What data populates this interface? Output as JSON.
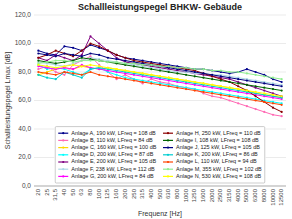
{
  "chart_data": {
    "type": "line",
    "title": "Schallleistungspegel BHKW- Gebäude",
    "x_label": "Frequenz [Hz]",
    "y_label": "Schallleistungspegel Lmax [dB]",
    "categories": [
      "20",
      "25",
      "31,5",
      "40",
      "50",
      "63",
      "80",
      "100",
      "125",
      "160",
      "200",
      "250",
      "315",
      "400",
      "500",
      "630",
      "800",
      "1000",
      "1250",
      "1600",
      "2000",
      "2500",
      "3150",
      "4000",
      "5000",
      "6300",
      "8000",
      "10000",
      "12500"
    ],
    "ylim": [
      0,
      120
    ],
    "yticks": [
      {
        "value": 0,
        "label": "0,0"
      },
      {
        "value": 20,
        "label": "20,0"
      },
      {
        "value": 40,
        "label": "40,0"
      },
      {
        "value": 60,
        "label": "60,0"
      },
      {
        "value": 80,
        "label": "80,0"
      },
      {
        "value": 100,
        "label": "100,0"
      },
      {
        "value": 120,
        "label": "120,0"
      }
    ],
    "grid": true,
    "legend": "bottom",
    "marker": "circle",
    "series": [
      {
        "name": "Anlage A, 190 kW, LFreq = 108 dB",
        "color": "#00008B",
        "values": [
          95,
          93,
          92,
          98,
          97,
          95,
          99,
          97,
          95,
          92,
          90,
          89,
          88,
          87,
          86,
          85,
          84,
          83,
          82,
          82,
          81,
          80,
          79,
          80,
          82,
          80,
          78,
          75,
          73
        ]
      },
      {
        "name": "Anlage B, 110 kW, LFreq = 84 dB",
        "color": "#FF69B4",
        "values": [
          82,
          84,
          80,
          78,
          85,
          88,
          91,
          85,
          80,
          75,
          78,
          75,
          72,
          75,
          73,
          72,
          70,
          69,
          68,
          65,
          63,
          62,
          60,
          58,
          56,
          54,
          52,
          50,
          49
        ]
      },
      {
        "name": "Anlage C, 160 kW, LFreq = 100 dB",
        "color": "#FFD700",
        "values": [
          78,
          80,
          82,
          83,
          82,
          84,
          83,
          82,
          83,
          82,
          81,
          80,
          79,
          78,
          77,
          76,
          75,
          74,
          73,
          72,
          71,
          70,
          69,
          68,
          67,
          65,
          64,
          63,
          62
        ]
      },
      {
        "name": "Anlage D, 200 kW, LFreq = 87 dB",
        "color": "#00FFFF",
        "values": [
          85,
          82,
          83,
          82,
          80,
          78,
          82,
          83,
          80,
          78,
          76,
          75,
          74,
          73,
          72,
          71,
          70,
          69,
          68,
          67,
          66,
          65,
          64,
          63,
          62,
          61,
          60,
          59,
          58
        ]
      },
      {
        "name": "Anlage E, 200 kW, LFreq = 105 dB",
        "color": "#800080",
        "values": [
          90,
          88,
          92,
          90,
          88,
          92,
          105,
          100,
          95,
          90,
          87,
          86,
          85,
          84,
          83,
          82,
          81,
          80,
          79,
          78,
          77,
          76,
          75,
          73,
          71,
          69,
          67,
          65,
          63
        ]
      },
      {
        "name": "Anlage F, 238 kW, LFreq = 112 dB",
        "color": "#ADD8E6",
        "values": [
          87,
          86,
          85,
          84,
          86,
          88,
          90,
          89,
          88,
          87,
          86,
          85,
          84,
          83,
          82,
          81,
          80,
          80,
          79,
          79,
          78,
          78,
          77,
          76,
          75,
          74,
          73,
          72,
          71
        ]
      },
      {
        "name": "Anlage G, 200 kW, LFreq = 84 dB",
        "color": "#FF00FF",
        "values": [
          84,
          83,
          82,
          83,
          82,
          85,
          83,
          82,
          81,
          80,
          79,
          78,
          77,
          76,
          75,
          74,
          73,
          72,
          71,
          70,
          69,
          68,
          67,
          66,
          65,
          64,
          63,
          62,
          61
        ]
      },
      {
        "name": "Anlage H, 250 kW, LFreq = 110 dB",
        "color": "#8B0000",
        "values": [
          90,
          92,
          95,
          93,
          91,
          95,
          100,
          98,
          95,
          92,
          90,
          88,
          87,
          86,
          85,
          84,
          83,
          82,
          81,
          79,
          77,
          75,
          73,
          70,
          67,
          63,
          59,
          55,
          52
        ]
      },
      {
        "name": "Anlage I, 108 kW, LFreq = 108 dB",
        "color": "#006400",
        "values": [
          88,
          87,
          86,
          87,
          88,
          90,
          89,
          88,
          87,
          86,
          85,
          84,
          83,
          82,
          81,
          80,
          79,
          78,
          77,
          76,
          75,
          74,
          73,
          72,
          71,
          70,
          69,
          68,
          67
        ]
      },
      {
        "name": "Anlage J, 125 kW, LFreq = 105 dB",
        "color": "#000080",
        "values": [
          93,
          92,
          91,
          93,
          92,
          91,
          93,
          92,
          90,
          89,
          88,
          87,
          86,
          85,
          84,
          83,
          82,
          81,
          80,
          79,
          78,
          77,
          76,
          75,
          74,
          73,
          72,
          71,
          70
        ]
      },
      {
        "name": "Anlage K, 200 kW, LFreq = 86 dB",
        "color": "#00CED1",
        "values": [
          78,
          76,
          75,
          80,
          78,
          76,
          82,
          83,
          82,
          81,
          80,
          79,
          78,
          77,
          76,
          75,
          74,
          73,
          72,
          71,
          70,
          69,
          68,
          67,
          66,
          65,
          64,
          63,
          62
        ]
      },
      {
        "name": "Anlage L, 110 kW, LFreq = 94 dB",
        "color": "#FF4500",
        "values": [
          80,
          79,
          78,
          80,
          79,
          78,
          80,
          78,
          77,
          76,
          75,
          74,
          73,
          72,
          71,
          70,
          69,
          68,
          67,
          66,
          65,
          64,
          63,
          62,
          61,
          60,
          59,
          58,
          57
        ]
      },
      {
        "name": "Anlage M, 355 kW, LFreq = 102 dB",
        "color": "#90EE90",
        "values": [
          86,
          87,
          88,
          88,
          87,
          88,
          88,
          88,
          87,
          87,
          86,
          86,
          85,
          85,
          84,
          84,
          83,
          83,
          82,
          82,
          81,
          81,
          80,
          80,
          79,
          78,
          77,
          76,
          75
        ]
      },
      {
        "name": "Anlage N, 530 kW, LFreq = 108 dB",
        "color": "#FFFF00",
        "values": [
          85,
          84,
          83,
          84,
          85,
          84,
          85,
          84,
          83,
          82,
          81,
          80,
          79,
          78,
          77,
          76,
          75,
          74,
          73,
          72,
          71,
          70,
          69,
          68,
          67,
          66,
          65,
          64,
          63
        ]
      }
    ]
  }
}
